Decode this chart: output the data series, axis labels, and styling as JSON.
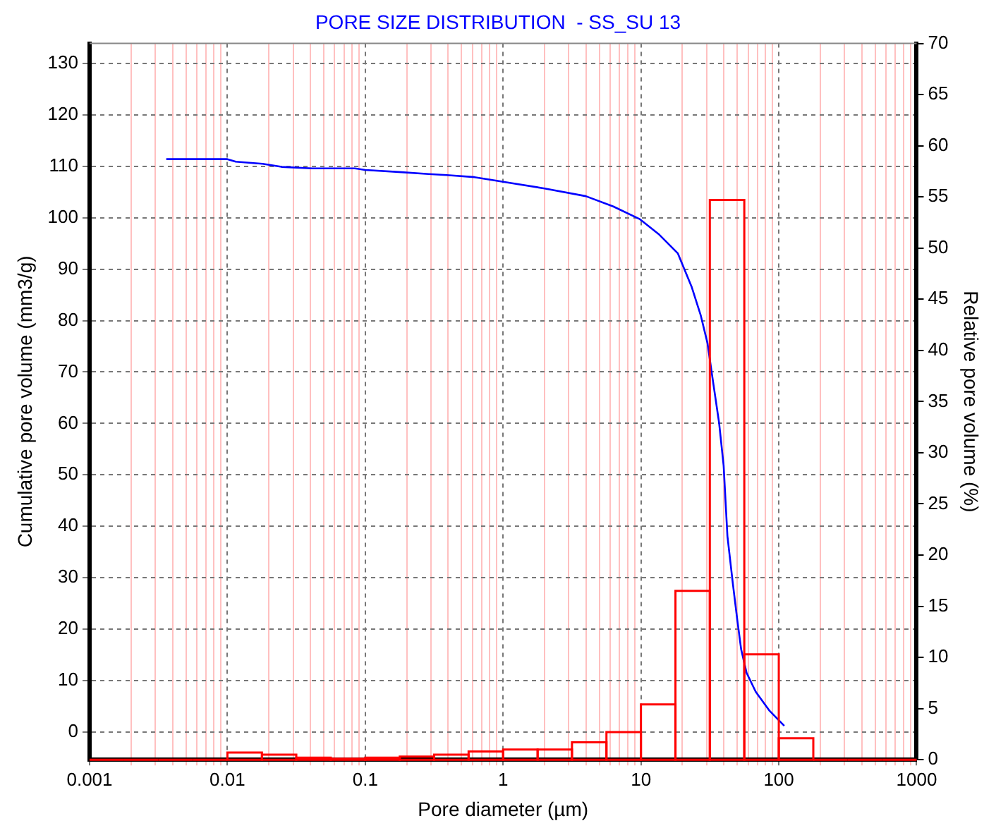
{
  "chart_data": {
    "type": "line",
    "title": "PORE SIZE DISTRIBUTION  - SS_SU 13",
    "xlabel": "Pore diameter (µm)",
    "ylabel": "Cumulative pore volume (mm3/g)",
    "y2label": "Relative pore volume (%)",
    "log": "x",
    "grid": true,
    "legend": false,
    "marker": "none",
    "line_style": "solid",
    "xlim": [
      0.001,
      1000
    ],
    "xticks": [
      0.001,
      {
        "value": 0.002,
        "label": null
      },
      {
        "value": 0.003,
        "label": null
      },
      {
        "value": 0.004,
        "label": null
      },
      {
        "value": 0.005,
        "label": null
      },
      {
        "value": 0.006,
        "label": null
      },
      {
        "value": 0.007,
        "label": null
      },
      {
        "value": 0.008,
        "label": null
      },
      {
        "value": 0.009,
        "label": null
      },
      0.01,
      {
        "value": 0.02,
        "label": null
      },
      {
        "value": 0.03,
        "label": null
      },
      {
        "value": 0.04,
        "label": null
      },
      {
        "value": 0.05,
        "label": null
      },
      {
        "value": 0.06,
        "label": null
      },
      {
        "value": 0.07,
        "label": null
      },
      {
        "value": 0.08,
        "label": null
      },
      {
        "value": 0.09,
        "label": null
      },
      0.1,
      {
        "value": 0.2,
        "label": null
      },
      {
        "value": 0.3,
        "label": null
      },
      {
        "value": 0.4,
        "label": null
      },
      {
        "value": 0.5,
        "label": null
      },
      {
        "value": 0.6,
        "label": null
      },
      {
        "value": 0.7,
        "label": null
      },
      {
        "value": 0.8,
        "label": null
      },
      {
        "value": 0.9,
        "label": null
      },
      1,
      {
        "value": 2,
        "label": null
      },
      {
        "value": 3,
        "label": null
      },
      {
        "value": 4,
        "label": null
      },
      {
        "value": 5,
        "label": null
      },
      {
        "value": 6,
        "label": null
      },
      {
        "value": 7,
        "label": null
      },
      {
        "value": 8,
        "label": null
      },
      {
        "value": 9,
        "label": null
      },
      10,
      {
        "value": 20,
        "label": null
      },
      {
        "value": 30,
        "label": null
      },
      {
        "value": 40,
        "label": null
      },
      {
        "value": 50,
        "label": null
      },
      {
        "value": 60,
        "label": null
      },
      {
        "value": 70,
        "label": null
      },
      {
        "value": 80,
        "label": null
      },
      {
        "value": 90,
        "label": null
      },
      100,
      {
        "value": 200,
        "label": null
      },
      {
        "value": 300,
        "label": null
      },
      {
        "value": 400,
        "label": null
      },
      {
        "value": 500,
        "label": null
      },
      {
        "value": 600,
        "label": null
      },
      {
        "value": 700,
        "label": null
      },
      {
        "value": 800,
        "label": null
      },
      {
        "value": 900,
        "label": null
      },
      1000
    ],
    "ylim": [
      -5.4,
      133.9
    ],
    "yticks": [
      0,
      10,
      20,
      30,
      40,
      50,
      60,
      70,
      80,
      90,
      100,
      110,
      120,
      130
    ],
    "y2lim": [
      0,
      70
    ],
    "y2ticks": [
      0,
      5,
      10,
      15,
      20,
      25,
      30,
      35,
      40,
      45,
      50,
      55,
      60,
      65,
      70
    ],
    "series": [
      {
        "type": "line",
        "color": "#0000ff",
        "axis": "y",
        "x": [
          0.0036,
          0.01,
          0.0115,
          0.018,
          0.0247,
          0.041,
          0.084,
          0.1,
          0.175,
          0.288,
          0.39,
          0.62,
          1.0,
          2.0,
          3.98,
          6.3,
          9.85,
          13.6,
          18.5,
          23.3,
          27.1,
          30.4,
          32.9,
          36.9,
          39.8,
          42.4,
          46.4,
          50.1,
          53.3,
          58.4,
          68.1,
          85.8,
          109.6
        ],
        "values": [
          111.4,
          111.4,
          110.9,
          110.5,
          109.9,
          109.6,
          109.6,
          109.3,
          108.9,
          108.5,
          108.3,
          107.9,
          107.0,
          105.7,
          104.2,
          102.2,
          99.7,
          96.7,
          93.1,
          86.6,
          81.1,
          75.6,
          69.2,
          60.1,
          51.8,
          38.1,
          28.9,
          21.6,
          16.1,
          11.5,
          7.8,
          4.1,
          1.2
        ]
      },
      {
        "type": "histogram",
        "color": "#ff0000",
        "axis": "y2",
        "bins": [
          0.001,
          0.00178,
          0.00316,
          0.00562,
          0.01,
          0.0178,
          0.0316,
          0.0562,
          0.1,
          0.178,
          0.316,
          0.562,
          1,
          1.78,
          3.16,
          5.62,
          10,
          17.8,
          31.6,
          56.2,
          100,
          178,
          316,
          562,
          1000
        ],
        "values": [
          0,
          0,
          0,
          0,
          0.7,
          0.5,
          0.2,
          0.1,
          0.2,
          0.3,
          0.5,
          0.8,
          1.0,
          1.0,
          1.7,
          2.7,
          5.4,
          16.5,
          54.7,
          10.3,
          2.1,
          0,
          0,
          0
        ]
      }
    ]
  }
}
